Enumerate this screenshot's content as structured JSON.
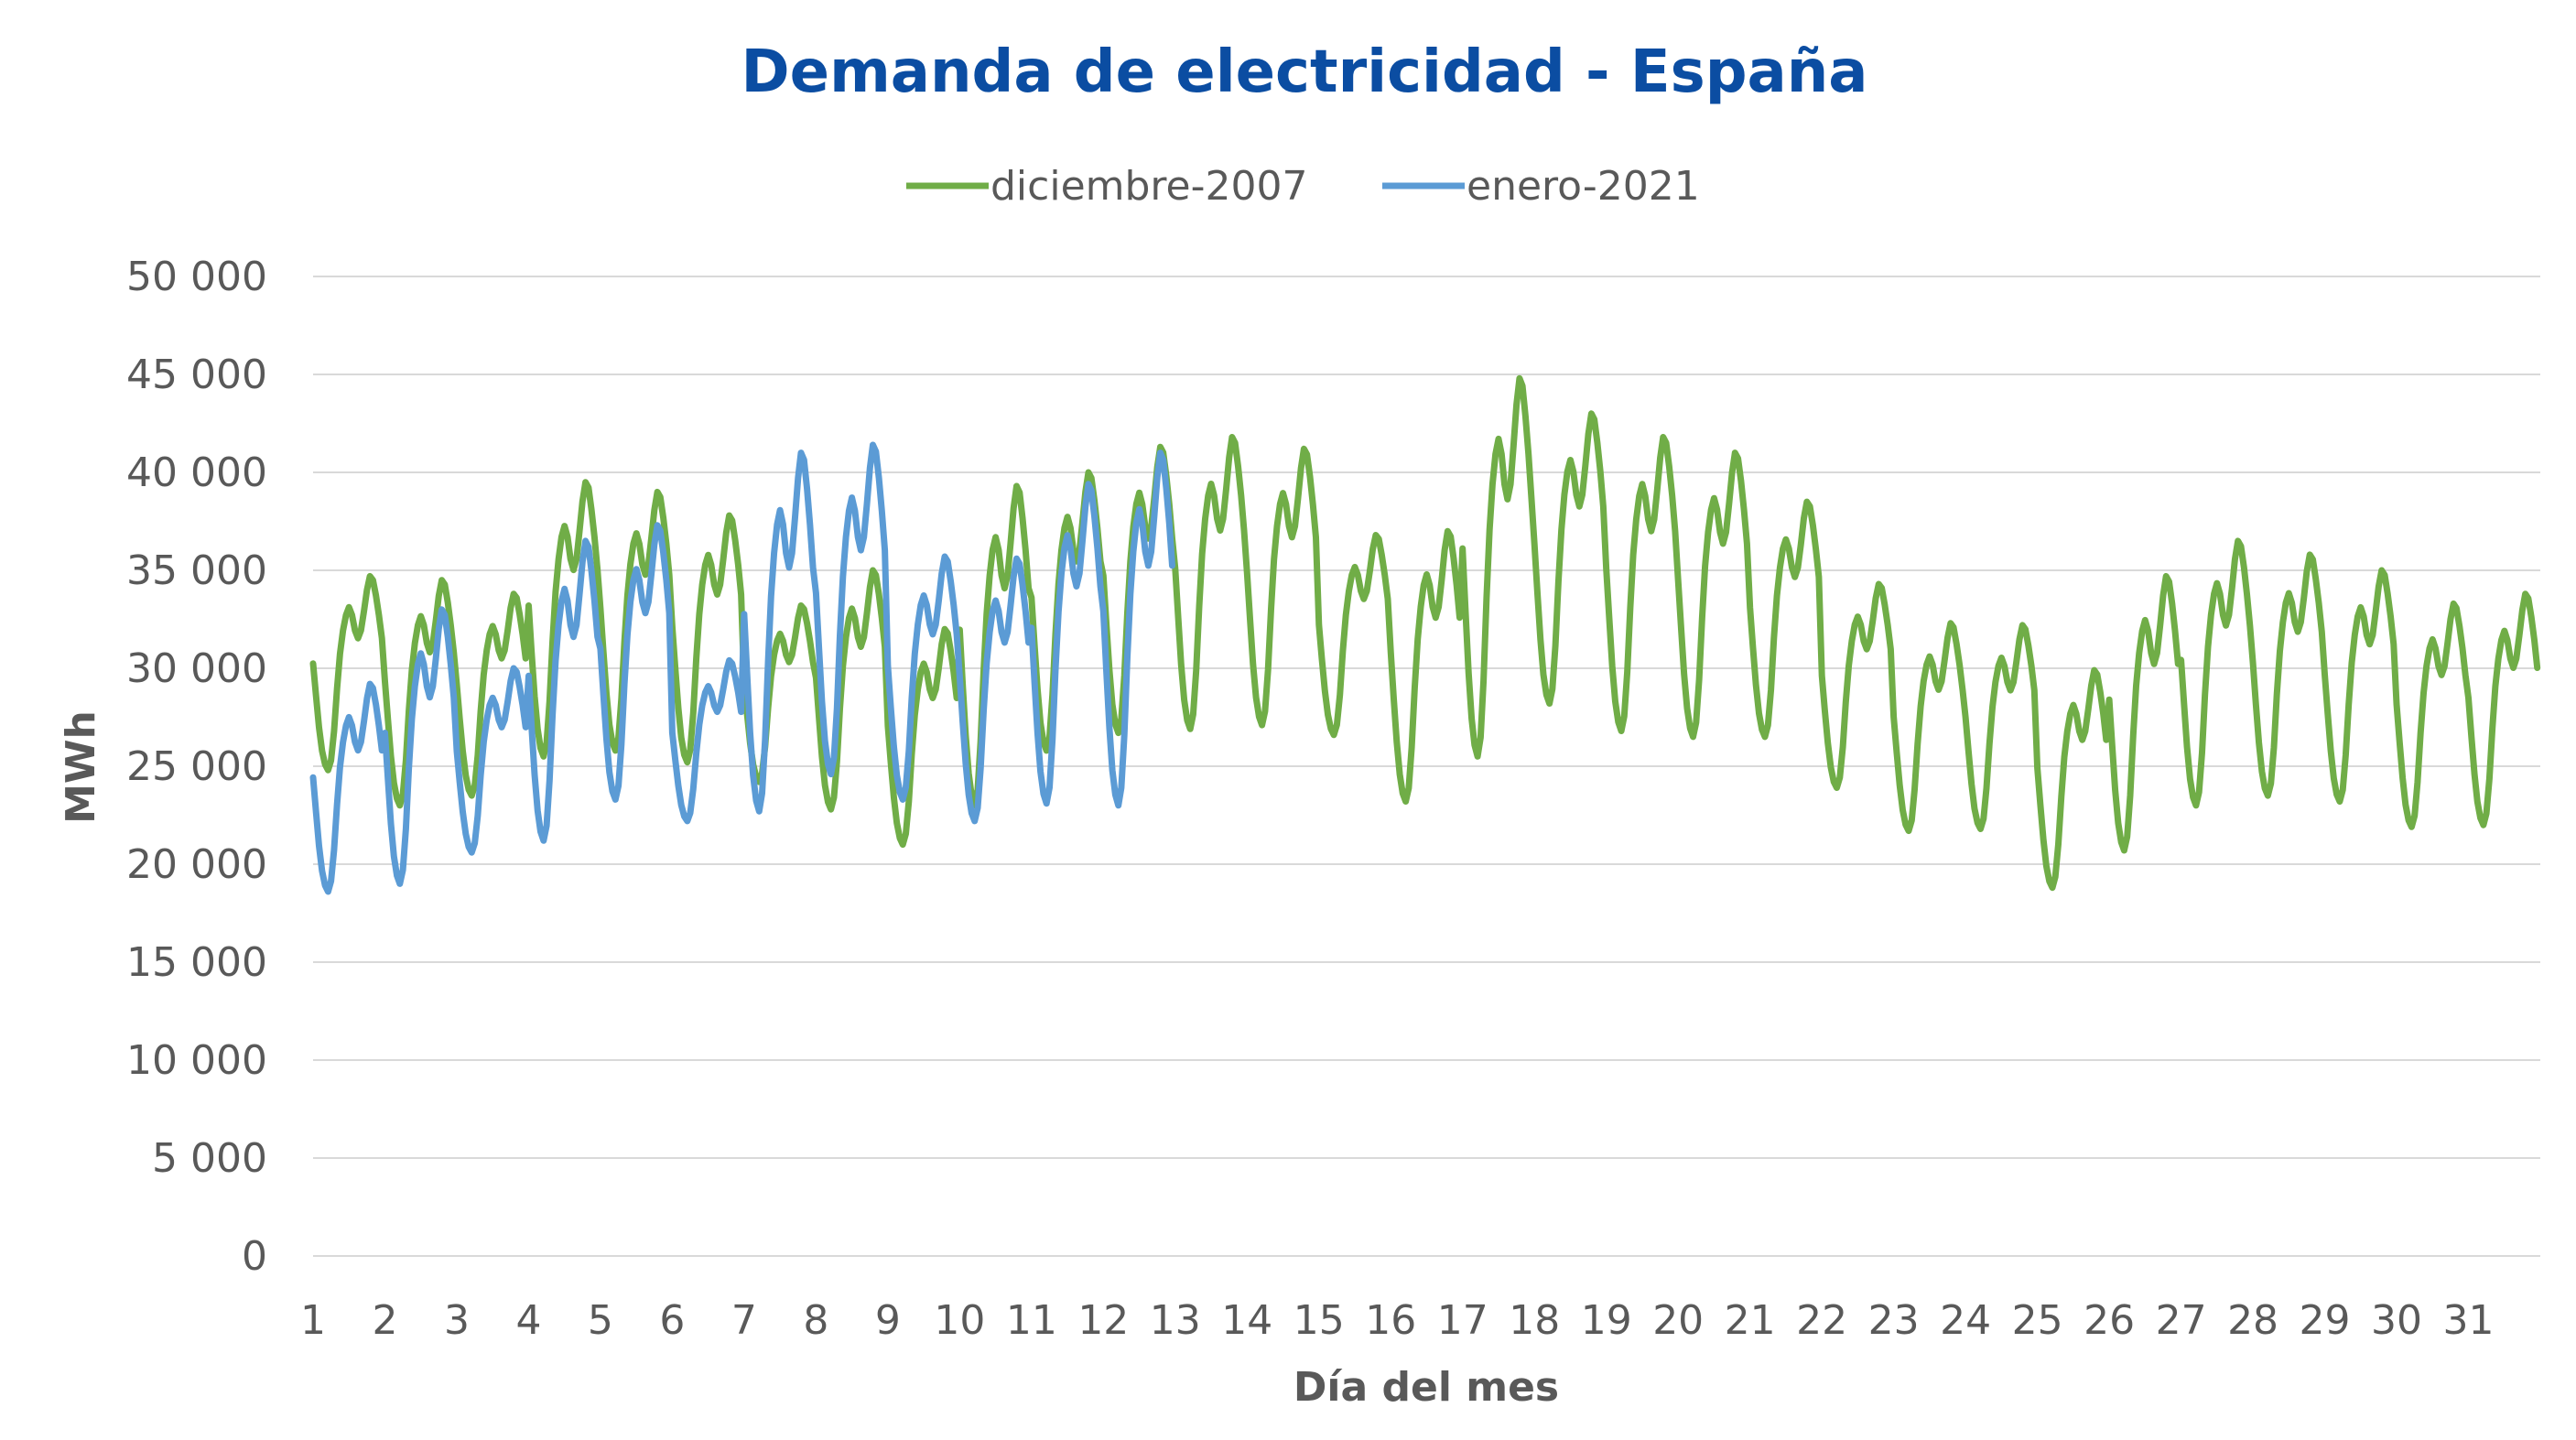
{
  "chart_data": {
    "type": "line",
    "title": "Demanda de electricidad - España",
    "xlabel": "Día del mes",
    "ylabel": "MWh",
    "ylim": [
      0,
      50000
    ],
    "xlim": [
      1,
      32
    ],
    "y_ticks": [
      "0",
      "5 000",
      "10 000",
      "15 000",
      "20 000",
      "25 000",
      "30 000",
      "35 000",
      "40 000",
      "45 000",
      "50 000"
    ],
    "y_tick_values": [
      0,
      5000,
      10000,
      15000,
      20000,
      25000,
      30000,
      35000,
      40000,
      45000,
      50000
    ],
    "x_ticks": [
      "1",
      "2",
      "3",
      "4",
      "5",
      "6",
      "7",
      "8",
      "9",
      "10",
      "11",
      "12",
      "13",
      "14",
      "15",
      "16",
      "17",
      "18",
      "19",
      "20",
      "21",
      "22",
      "23",
      "24",
      "25",
      "26",
      "27",
      "28",
      "29",
      "30",
      "31"
    ],
    "grid": true,
    "legend_position": "top",
    "series": [
      {
        "name": "diciembre-2007",
        "color": "#70ad47",
        "day_profiles": [
          [
            24800,
            34700
          ],
          [
            23000,
            34500
          ],
          [
            23500,
            33800
          ],
          [
            25500,
            39500
          ],
          [
            25800,
            39000
          ],
          [
            25200,
            37800
          ],
          [
            24200,
            33200
          ],
          [
            22800,
            35000
          ],
          [
            21000,
            32000
          ],
          [
            23000,
            39300
          ],
          [
            25800,
            40000
          ],
          [
            26700,
            41300
          ],
          [
            26900,
            41800
          ],
          [
            27100,
            41200
          ],
          [
            26600,
            36800
          ],
          [
            23200,
            37000
          ],
          [
            25500,
            44800
          ],
          [
            28200,
            43000
          ],
          [
            26800,
            41800
          ],
          [
            26500,
            41000
          ],
          [
            26500,
            38500
          ],
          [
            23900,
            34300
          ],
          [
            21700,
            32300
          ],
          [
            21800,
            32200
          ],
          [
            18800,
            29900
          ],
          [
            20700,
            34700
          ],
          [
            23000,
            36500
          ],
          [
            23500,
            35800
          ],
          [
            23200,
            35000
          ],
          [
            21900,
            33300
          ],
          [
            22000,
            33800
          ]
        ]
      },
      {
        "name": "enero-2021",
        "color": "#5b9bd5",
        "day_profiles": [
          [
            18600,
            29200
          ],
          [
            19000,
            33000
          ],
          [
            20600,
            30000
          ],
          [
            21200,
            36500
          ],
          [
            23300,
            37300
          ],
          [
            22200,
            30400
          ],
          [
            22700,
            41000
          ],
          [
            24600,
            41400
          ],
          [
            23300,
            35700
          ],
          [
            22200,
            35600
          ],
          [
            23100,
            39400
          ],
          [
            23000,
            41000
          ]
        ]
      }
    ]
  }
}
